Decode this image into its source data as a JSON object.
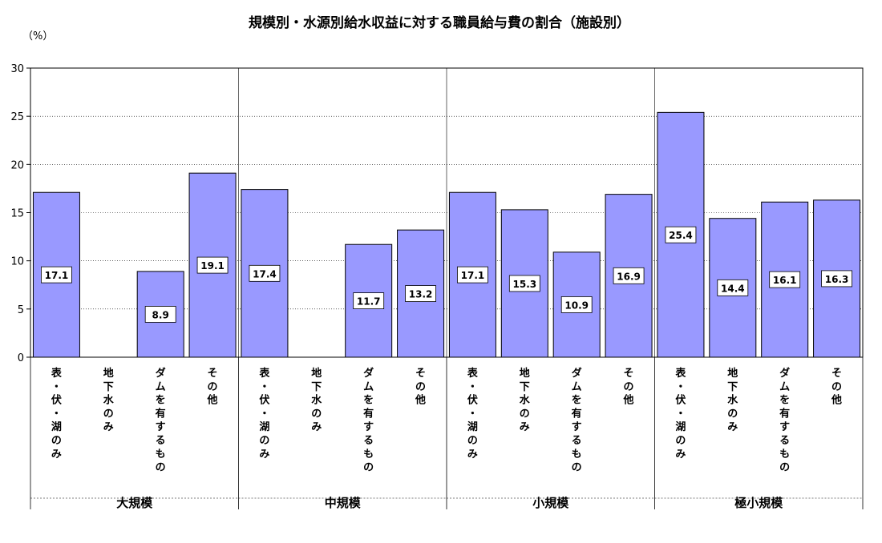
{
  "chart_data": {
    "type": "bar",
    "title": "規模別・水源別給水収益に対する職員給与費の割合（施設別）",
    "ylabel": "（%）",
    "ylim": [
      0,
      30
    ],
    "yticks": [
      0,
      5,
      10,
      15,
      20,
      25,
      30
    ],
    "grid": true,
    "bar_color": "#9999ff",
    "groups": [
      {
        "name": "大規模",
        "bars": [
          {
            "category": "表・伏・湖のみ",
            "value": 17.1,
            "label": "17.1"
          },
          {
            "category": "地下水のみ",
            "value": 0,
            "label": ""
          },
          {
            "category": "ダムを有するもの",
            "value": 8.9,
            "label": "8.9"
          },
          {
            "category": "その他",
            "value": 19.1,
            "label": "19.1"
          }
        ]
      },
      {
        "name": "中規模",
        "bars": [
          {
            "category": "表・伏・湖のみ",
            "value": 17.4,
            "label": "17.4"
          },
          {
            "category": "地下水のみ",
            "value": 0,
            "label": ""
          },
          {
            "category": "ダムを有するもの",
            "value": 11.7,
            "label": "11.7"
          },
          {
            "category": "その他",
            "value": 13.2,
            "label": "13.2"
          }
        ]
      },
      {
        "name": "小規模",
        "bars": [
          {
            "category": "表・伏・湖のみ",
            "value": 17.1,
            "label": "17.1"
          },
          {
            "category": "地下水のみ",
            "value": 15.3,
            "label": "15.3"
          },
          {
            "category": "ダムを有するもの",
            "value": 10.9,
            "label": "10.9"
          },
          {
            "category": "その他",
            "value": 16.9,
            "label": "16.9"
          }
        ]
      },
      {
        "name": "極小規模",
        "bars": [
          {
            "category": "表・伏・湖のみ",
            "value": 25.4,
            "label": "25.4"
          },
          {
            "category": "地下水のみ",
            "value": 14.4,
            "label": "14.4"
          },
          {
            "category": "ダムを有するもの",
            "value": 16.1,
            "label": "16.1"
          },
          {
            "category": "その他",
            "value": 16.3,
            "label": "16.3"
          }
        ]
      }
    ]
  }
}
